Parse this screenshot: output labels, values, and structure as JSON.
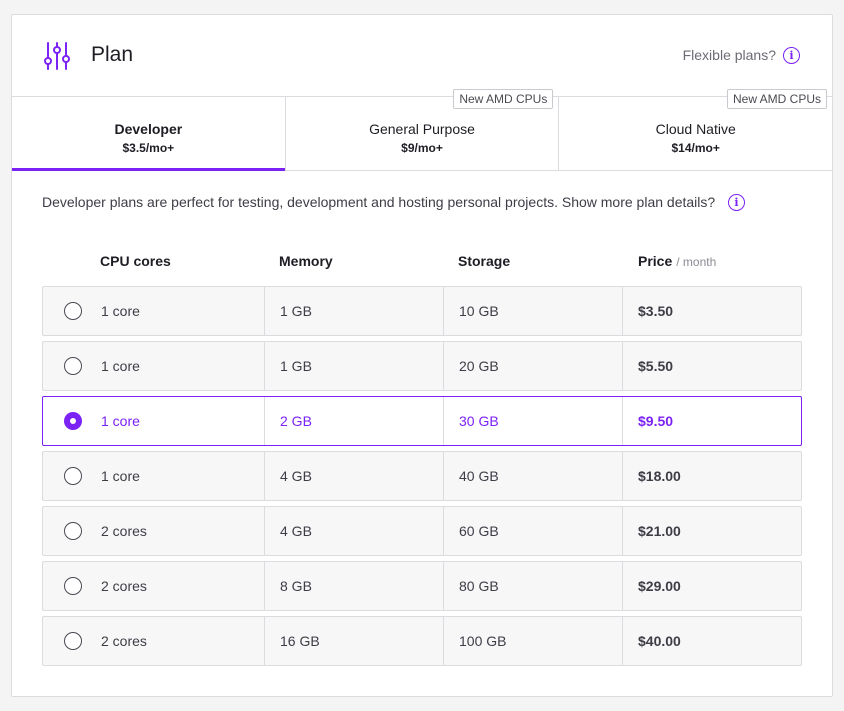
{
  "header": {
    "title": "Plan",
    "icon": "sliders-icon",
    "flex_link": "Flexible plans?",
    "accent_color": "#7b22f5"
  },
  "tabs": [
    {
      "name": "Developer",
      "price": "$3.5/mo+",
      "badge": "",
      "active": true
    },
    {
      "name": "General Purpose",
      "price": "$9/mo+",
      "badge": "New AMD CPUs",
      "active": false
    },
    {
      "name": "Cloud Native",
      "price": "$14/mo+",
      "badge": "New AMD CPUs",
      "active": false
    }
  ],
  "description": "Developer plans are perfect for testing, development and hosting personal projects. Show more plan details?",
  "table": {
    "headers": {
      "cpu": "CPU cores",
      "memory": "Memory",
      "storage": "Storage",
      "price": "Price",
      "price_sub": "/ month"
    },
    "rows": [
      {
        "cpu": "1 core",
        "memory": "1 GB",
        "storage": "10 GB",
        "price": "$3.50",
        "selected": false
      },
      {
        "cpu": "1 core",
        "memory": "1 GB",
        "storage": "20 GB",
        "price": "$5.50",
        "selected": false
      },
      {
        "cpu": "1 core",
        "memory": "2 GB",
        "storage": "30 GB",
        "price": "$9.50",
        "selected": true
      },
      {
        "cpu": "1 core",
        "memory": "4 GB",
        "storage": "40 GB",
        "price": "$18.00",
        "selected": false
      },
      {
        "cpu": "2 cores",
        "memory": "4 GB",
        "storage": "60 GB",
        "price": "$21.00",
        "selected": false
      },
      {
        "cpu": "2 cores",
        "memory": "8 GB",
        "storage": "80 GB",
        "price": "$29.00",
        "selected": false
      },
      {
        "cpu": "2 cores",
        "memory": "16 GB",
        "storage": "100 GB",
        "price": "$40.00",
        "selected": false
      }
    ]
  }
}
